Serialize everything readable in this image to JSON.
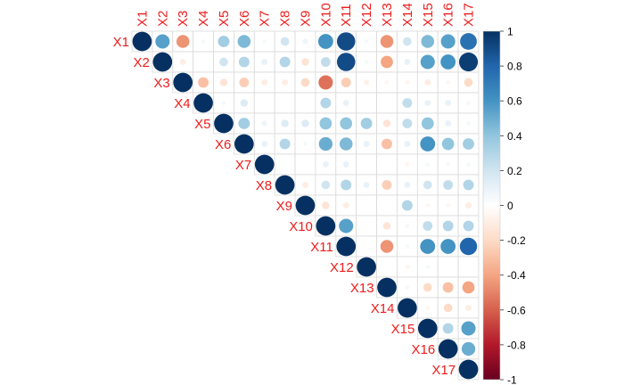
{
  "chart_data": {
    "type": "heatmap",
    "subtype": "correlation-upper-triangle-circles",
    "title": "",
    "labels": [
      "X1",
      "X2",
      "X3",
      "X4",
      "X5",
      "X6",
      "X7",
      "X8",
      "X9",
      "X10",
      "X11",
      "X12",
      "X13",
      "X14",
      "X15",
      "X16",
      "X17"
    ],
    "label_color": "#EE1C1C",
    "diagonal_value": 1,
    "grid": true,
    "colorbar": {
      "position": "right",
      "range": [
        -1,
        1
      ],
      "ticks": [
        "1",
        "0.8",
        "0.6",
        "0.4",
        "0.2",
        "0",
        "-0.2",
        "-0.4",
        "-0.6",
        "-0.8",
        "-1"
      ],
      "tick_values": [
        1,
        0.8,
        0.6,
        0.4,
        0.2,
        0,
        -0.2,
        -0.4,
        -0.6,
        -0.8,
        -1
      ],
      "color_stops": [
        "#67001F",
        "#B2182B",
        "#D6604D",
        "#F4A582",
        "#FDDBC7",
        "#FFFFFF",
        "#D1E5F0",
        "#92C5DE",
        "#4393C3",
        "#2166AC",
        "#053061"
      ]
    },
    "matrix": [
      [
        1,
        0.55,
        -0.45,
        0.05,
        0.35,
        0.45,
        0.05,
        0.2,
        0.08,
        0.6,
        0.9,
        0.05,
        -0.45,
        0.2,
        0.45,
        0.55,
        0.75
      ],
      [
        0.55,
        1,
        -0.1,
        0,
        0.2,
        0.3,
        0.1,
        0.3,
        -0.15,
        0.25,
        0.9,
        0.05,
        -0.4,
        0.1,
        0.55,
        0.6,
        0.95
      ],
      [
        -0.45,
        -0.1,
        1,
        -0.3,
        -0.15,
        -0.25,
        -0.1,
        -0.1,
        -0.2,
        -0.55,
        -0.25,
        -0.08,
        -0.05,
        -0.05,
        -0.1,
        -0.05,
        -0.2
      ],
      [
        0.05,
        0,
        -0.3,
        1,
        0.05,
        0.15,
        0,
        0,
        0,
        0.3,
        0.1,
        0,
        0,
        0.25,
        0.1,
        0.1,
        0.05
      ],
      [
        0.35,
        0.2,
        -0.15,
        0.05,
        1,
        0.35,
        0.08,
        0.15,
        0.15,
        0.4,
        0.4,
        0.35,
        -0.15,
        0.25,
        0.4,
        0.1,
        0.05
      ],
      [
        0.45,
        0.3,
        -0.25,
        0.15,
        0.35,
        1,
        0.1,
        0.3,
        0.05,
        0.5,
        0.45,
        0.1,
        -0.3,
        0.1,
        0.6,
        0.4,
        0.35
      ],
      [
        0.05,
        0.1,
        -0.1,
        0,
        0.08,
        0.1,
        1,
        0,
        0,
        0.1,
        0.1,
        0,
        0,
        -0.05,
        0.05,
        0.05,
        0.05
      ],
      [
        0.2,
        0.3,
        -0.1,
        0,
        0.15,
        0.3,
        0,
        1,
        -0.1,
        0.2,
        0.3,
        0.1,
        -0.25,
        0.1,
        0.2,
        0.25,
        0.3
      ],
      [
        0.08,
        -0.15,
        -0.2,
        0,
        0.15,
        0.05,
        0,
        -0.1,
        1,
        -0.15,
        -0.1,
        0,
        0,
        0.3,
        -0.05,
        -0.05,
        -0.1
      ],
      [
        0.6,
        0.25,
        -0.55,
        0.3,
        0.4,
        0.5,
        0.1,
        0.2,
        -0.15,
        1,
        0.55,
        0,
        -0.15,
        0.05,
        0.25,
        0.3,
        0.3
      ],
      [
        0.9,
        0.9,
        -0.25,
        0.1,
        0.4,
        0.45,
        0.1,
        0.3,
        -0.1,
        0.55,
        1,
        0,
        -0.45,
        0.05,
        0.6,
        0.6,
        0.8
      ],
      [
        0.05,
        0.05,
        -0.08,
        0,
        0.35,
        0.1,
        0,
        0.1,
        0,
        0,
        0,
        1,
        0,
        -0.05,
        0.05,
        0,
        0
      ],
      [
        -0.45,
        -0.4,
        -0.05,
        0,
        -0.15,
        -0.3,
        0,
        -0.25,
        0,
        -0.15,
        -0.45,
        0,
        1,
        0.05,
        -0.2,
        -0.3,
        -0.4
      ],
      [
        0.2,
        0.1,
        -0.05,
        0.25,
        0.25,
        0.1,
        -0.05,
        0.1,
        0.3,
        0.05,
        0.05,
        -0.05,
        0.05,
        1,
        -0.05,
        -0.2,
        -0.1
      ],
      [
        0.45,
        0.55,
        -0.1,
        0.1,
        0.4,
        0.6,
        0.05,
        0.2,
        -0.05,
        0.25,
        0.6,
        0.05,
        -0.2,
        -0.05,
        1,
        0.3,
        0.55
      ],
      [
        0.55,
        0.6,
        -0.05,
        0.1,
        0.1,
        0.4,
        0.05,
        0.25,
        -0.05,
        0.3,
        0.6,
        0,
        -0.3,
        -0.2,
        0.3,
        1,
        0.5
      ],
      [
        0.75,
        0.95,
        -0.2,
        0.05,
        0.05,
        0.35,
        0.05,
        0.3,
        -0.1,
        0.3,
        0.8,
        0,
        -0.4,
        -0.1,
        0.55,
        0.5,
        1
      ]
    ]
  }
}
